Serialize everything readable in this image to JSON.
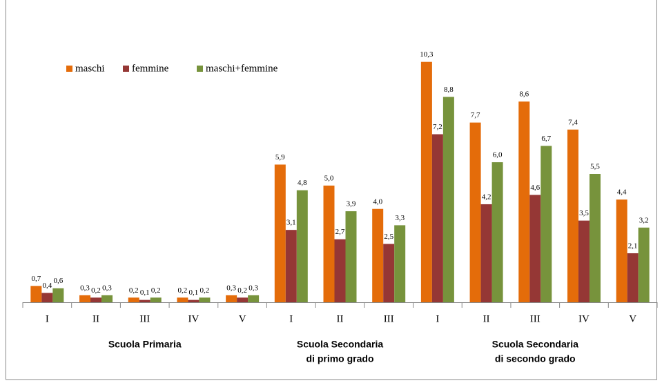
{
  "chart_data": {
    "type": "bar",
    "categories": [
      "I",
      "II",
      "III",
      "IV",
      "V",
      "I",
      "II",
      "III",
      "I",
      "II",
      "III",
      "IV",
      "V"
    ],
    "groups": [
      [
        "Scuola Primaria"
      ],
      [
        "Scuola Secondaria",
        "di primo grado"
      ],
      [
        "Scuola Secondaria",
        "di secondo grado"
      ]
    ],
    "series": [
      {
        "name": "maschi",
        "color": "#e46c0a",
        "values": [
          0.7,
          0.3,
          0.2,
          0.2,
          0.3,
          5.9,
          5.0,
          4.0,
          10.3,
          7.7,
          8.6,
          7.4,
          4.4
        ],
        "value_labels": [
          "0,7",
          "0,3",
          "0,2",
          "0,2",
          "0,3",
          "5,9",
          "5,0",
          "4,0",
          "10,3",
          "7,7",
          "8,6",
          "7,4",
          "4,4"
        ]
      },
      {
        "name": "femmine",
        "color": "#953735",
        "values": [
          0.4,
          0.2,
          0.1,
          0.1,
          0.2,
          3.1,
          2.7,
          2.5,
          7.2,
          4.2,
          4.6,
          3.5,
          2.1
        ],
        "value_labels": [
          "0,4",
          "0,2",
          "0,1",
          "0,1",
          "0,2",
          "3,1",
          "2,7",
          "2,5",
          "7,2",
          "4,2",
          "4,6",
          "3,5",
          "2,1"
        ]
      },
      {
        "name": "maschi+femmine",
        "color": "#77933c",
        "values": [
          0.6,
          0.3,
          0.2,
          0.2,
          0.3,
          4.8,
          3.9,
          3.3,
          8.8,
          6.0,
          6.7,
          5.5,
          3.2
        ],
        "value_labels": [
          "0,6",
          "0,3",
          "0,2",
          "0,2",
          "0,3",
          "4,8",
          "3,9",
          "3,3",
          "8,8",
          "6,0",
          "6,7",
          "5,5",
          "3,2"
        ]
      }
    ],
    "ylim": [
      0,
      11
    ],
    "legend": "top-left"
  }
}
